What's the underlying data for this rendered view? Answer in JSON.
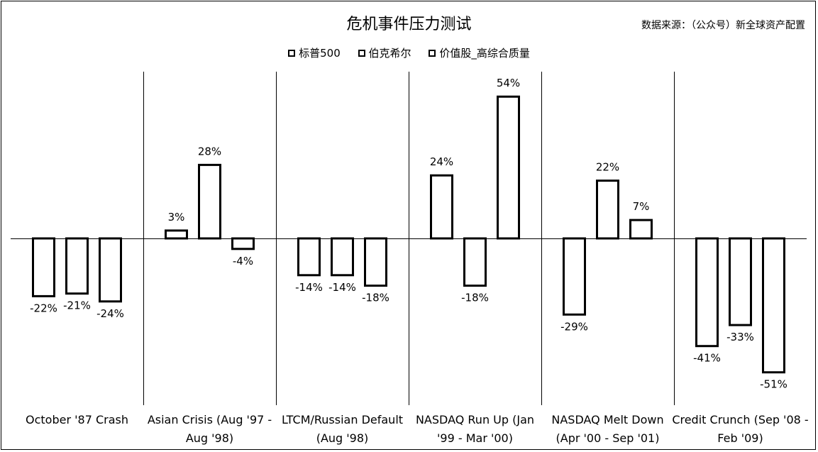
{
  "header": {
    "title": "危机事件压力测试",
    "source": "数据来源：（公众号）新全球资产配置"
  },
  "chart_data": {
    "type": "bar",
    "title": "危机事件压力测试",
    "categories": [
      [
        "October '87 Crash"
      ],
      [
        "Asian Crisis (Aug '97 -",
        "Aug '98)"
      ],
      [
        "LTCM/Russian Default",
        "(Aug '98)"
      ],
      [
        "NASDAQ Run Up (Jan",
        "'99 - Mar '00)"
      ],
      [
        "NASDAQ Melt Down",
        "(Apr '00 - Sep '01)"
      ],
      [
        "Credit Crunch (Sep '08 -",
        "Feb '09)"
      ]
    ],
    "series": [
      {
        "name": "标普500",
        "values": [
          -22,
          3,
          -14,
          24,
          -29,
          -41
        ]
      },
      {
        "name": "伯克希尔",
        "values": [
          -21,
          28,
          -14,
          -18,
          22,
          -33
        ]
      },
      {
        "name": "价值股_高综合质量",
        "values": [
          -24,
          -4,
          -18,
          54,
          7,
          -51
        ]
      }
    ],
    "value_suffix": "%",
    "grid": false,
    "legend_position": "top",
    "ylim": [
      -60,
      62
    ]
  }
}
